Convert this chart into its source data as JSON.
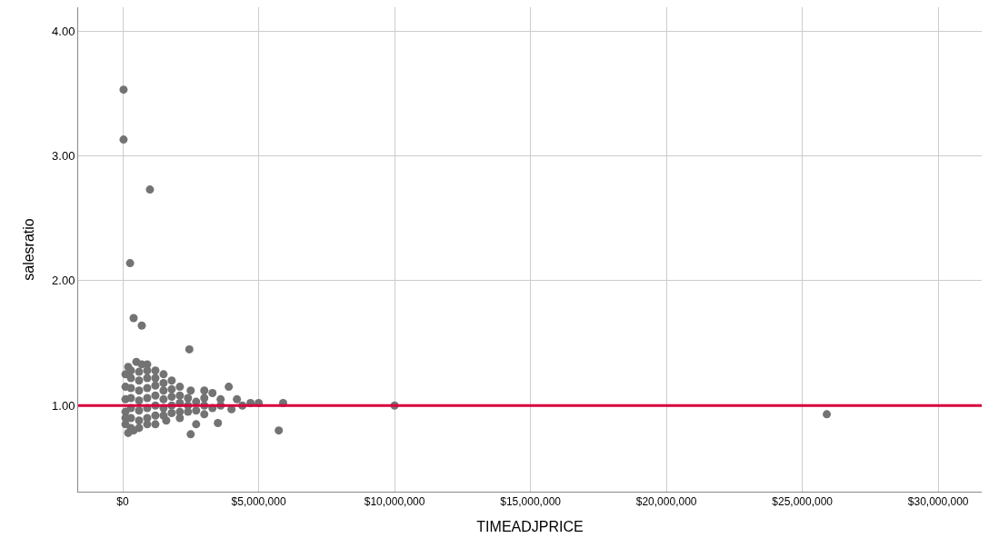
{
  "chart_data": {
    "type": "scatter",
    "xlabel": "TIMEADJPRICE",
    "ylabel": "salesratio",
    "xlim": [
      -1640000,
      31600000
    ],
    "xticks": [
      {
        "value": 0,
        "label": "$0"
      },
      {
        "value": 5000000,
        "label": "$5,000,000"
      },
      {
        "value": 10000000,
        "label": "$10,000,000"
      },
      {
        "value": 15000000,
        "label": "$15,000,000"
      },
      {
        "value": 20000000,
        "label": "$20,000,000"
      },
      {
        "value": 25000000,
        "label": "$25,000,000"
      },
      {
        "value": 30000000,
        "label": "$30,000,000"
      }
    ],
    "ylim": [
      0.31,
      4.19
    ],
    "yticks": [
      {
        "value": 1,
        "label": "1.00"
      },
      {
        "value": 2,
        "label": "2.00"
      },
      {
        "value": 3,
        "label": "3.00"
      },
      {
        "value": 4,
        "label": "4.00"
      }
    ],
    "grid": true,
    "marker": "circle",
    "ref_lines": [
      {
        "axis": "y",
        "value": 1.0,
        "color": "#d6003c"
      }
    ],
    "series": [
      {
        "color": "#737373",
        "x": [
          30000,
          30000,
          1000000,
          270000,
          400000,
          700000,
          2450000,
          10000000,
          25900000,
          5740000,
          5900000,
          200000,
          500000,
          700000,
          900000,
          1200000,
          1500000,
          1800000,
          2100000,
          2500000,
          3000000,
          3300000,
          3900000,
          4200000,
          4700000,
          5000000,
          200000,
          400000,
          600000,
          900000,
          1200000,
          1600000,
          2100000,
          2500000,
          2700000,
          3500000,
          4000000,
          3000000,
          100000,
          100000,
          100000,
          100000,
          100000,
          100000,
          300000,
          300000,
          300000,
          300000,
          300000,
          300000,
          300000,
          600000,
          600000,
          600000,
          600000,
          600000,
          600000,
          900000,
          900000,
          900000,
          900000,
          900000,
          900000,
          1200000,
          1200000,
          1200000,
          1200000,
          1200000,
          1500000,
          1500000,
          1500000,
          1500000,
          1500000,
          1800000,
          1800000,
          1800000,
          1800000,
          2100000,
          2100000,
          2100000,
          2400000,
          2400000,
          2400000,
          2700000,
          2700000,
          3000000,
          3000000,
          3300000,
          3600000,
          3600000,
          4400000
        ],
        "values": [
          3.53,
          3.13,
          2.73,
          2.14,
          1.7,
          1.64,
          1.45,
          1.0,
          0.93,
          0.8,
          1.02,
          1.31,
          1.35,
          1.33,
          1.33,
          1.28,
          1.25,
          1.2,
          1.15,
          1.12,
          1.12,
          1.1,
          1.15,
          1.05,
          1.02,
          1.02,
          0.78,
          0.8,
          0.82,
          0.85,
          0.85,
          0.88,
          0.9,
          0.77,
          0.85,
          0.86,
          0.97,
          0.93,
          0.85,
          0.95,
          1.05,
          1.15,
          1.25,
          0.9,
          0.82,
          0.9,
          0.98,
          1.06,
          1.14,
          1.22,
          1.28,
          0.88,
          0.96,
          1.04,
          1.12,
          1.2,
          1.27,
          0.9,
          0.98,
          1.06,
          1.14,
          1.22,
          1.28,
          0.92,
          1.0,
          1.08,
          1.16,
          1.22,
          0.92,
          0.98,
          1.05,
          1.12,
          1.18,
          0.94,
          1.0,
          1.07,
          1.13,
          0.95,
          1.02,
          1.08,
          0.95,
          1.0,
          1.06,
          0.96,
          1.03,
          1.0,
          1.06,
          0.98,
          1.0,
          1.05,
          1.0
        ]
      }
    ]
  }
}
